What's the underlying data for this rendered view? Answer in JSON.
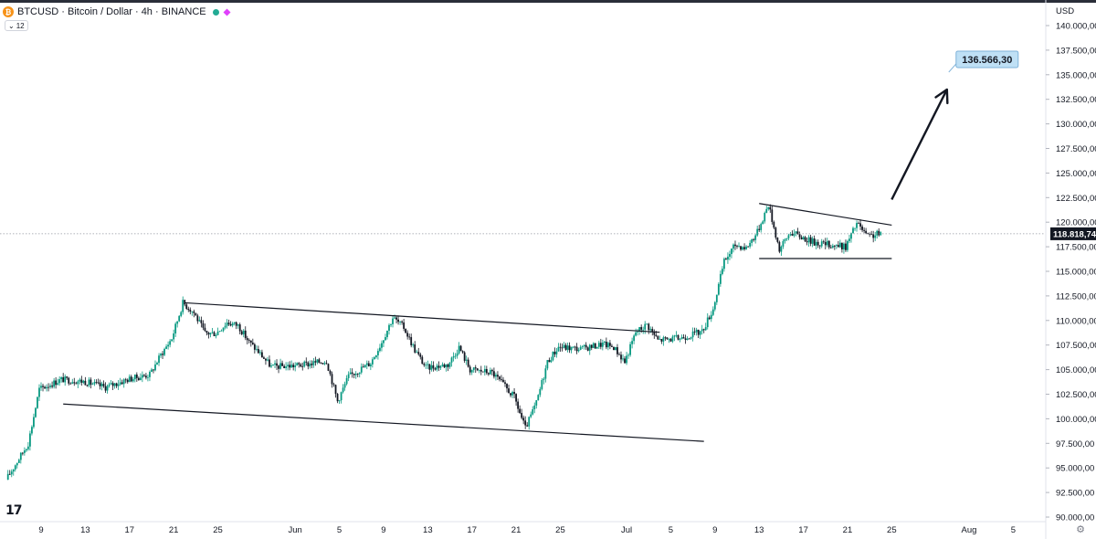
{
  "header": {
    "symbol_line": "BTCUSD · Bitcoin / Dollar · 4h · BINANCE",
    "coin_icon": "bitcoin-icon",
    "indicator_count": "12"
  },
  "price_axis": {
    "currency": "USD",
    "current_price_label": "118.818,74",
    "tick_labels": [
      "140.000,00",
      "137.500,00",
      "135.000,00",
      "132.500,00",
      "130.000,00",
      "127.500,00",
      "125.000,00",
      "122.500,00",
      "120.000,00",
      "117.500,00",
      "115.000,00",
      "112.500,00",
      "110.000,00",
      "107.500,00",
      "105.000,00",
      "102.500,00",
      "100.000,00",
      "97.500,00",
      "95.000,00",
      "92.500,00",
      "90.000,00"
    ]
  },
  "colors": {
    "up": "#089981",
    "down": "#131722",
    "current_price_bg": "#131722",
    "target_bg": "#bfe0f5",
    "target_border": "#7fb2d9"
  },
  "chart_data": {
    "type": "candlestick",
    "symbol": "BTCUSD",
    "interval": "4h",
    "exchange": "BINANCE",
    "ylim": [
      90000,
      140000
    ],
    "current_price": 118818.74,
    "x_tick_labels": [
      "9",
      "13",
      "17",
      "21",
      "25",
      "Jun",
      "5",
      "9",
      "13",
      "17",
      "21",
      "25",
      "Jul",
      "5",
      "9",
      "13",
      "17",
      "21",
      "25",
      "Aug",
      "5"
    ],
    "x_tick_dates": [
      "2025-05-09",
      "2025-05-13",
      "2025-05-17",
      "2025-05-21",
      "2025-05-25",
      "2025-06-01",
      "2025-06-05",
      "2025-06-09",
      "2025-06-13",
      "2025-06-17",
      "2025-06-21",
      "2025-06-25",
      "2025-07-01",
      "2025-07-05",
      "2025-07-09",
      "2025-07-13",
      "2025-07-17",
      "2025-07-21",
      "2025-07-25",
      "2025-08-01",
      "2025-08-05"
    ],
    "date_range": [
      "2025-05-06",
      "2025-08-09"
    ],
    "price_path": [
      [
        "2025-05-06",
        93800
      ],
      [
        "2025-05-08",
        97500
      ],
      [
        "2025-05-09",
        103000
      ],
      [
        "2025-05-11",
        104000
      ],
      [
        "2025-05-13",
        103800
      ],
      [
        "2025-05-15",
        103200
      ],
      [
        "2025-05-17",
        104000
      ],
      [
        "2025-05-19",
        104500
      ],
      [
        "2025-05-20",
        106500
      ],
      [
        "2025-05-21",
        108200
      ],
      [
        "2025-05-22",
        111800
      ],
      [
        "2025-05-23",
        110800
      ],
      [
        "2025-05-24",
        108700
      ],
      [
        "2025-05-25",
        108700
      ],
      [
        "2025-05-26",
        109800
      ],
      [
        "2025-05-27",
        109500
      ],
      [
        "2025-05-28",
        107800
      ],
      [
        "2025-05-29",
        106600
      ],
      [
        "2025-05-30",
        105300
      ],
      [
        "2025-06-01",
        105400
      ],
      [
        "2025-06-02",
        105500
      ],
      [
        "2025-06-04",
        105900
      ],
      [
        "2025-06-05",
        101800
      ],
      [
        "2025-06-06",
        104300
      ],
      [
        "2025-06-08",
        105700
      ],
      [
        "2025-06-09",
        107800
      ],
      [
        "2025-06-10",
        110300
      ],
      [
        "2025-06-11",
        109300
      ],
      [
        "2025-06-12",
        107000
      ],
      [
        "2025-06-13",
        105200
      ],
      [
        "2025-06-15",
        105500
      ],
      [
        "2025-06-16",
        107300
      ],
      [
        "2025-06-17",
        105000
      ],
      [
        "2025-06-19",
        104700
      ],
      [
        "2025-06-21",
        102200
      ],
      [
        "2025-06-22",
        99000
      ],
      [
        "2025-06-23",
        101600
      ],
      [
        "2025-06-24",
        105800
      ],
      [
        "2025-06-25",
        107300
      ],
      [
        "2025-06-27",
        107100
      ],
      [
        "2025-06-29",
        107600
      ],
      [
        "2025-06-30",
        107300
      ],
      [
        "2025-07-01",
        105800
      ],
      [
        "2025-07-02",
        108800
      ],
      [
        "2025-07-03",
        109600
      ],
      [
        "2025-07-04",
        108000
      ],
      [
        "2025-07-06",
        108200
      ],
      [
        "2025-07-08",
        108900
      ],
      [
        "2025-07-09",
        111200
      ],
      [
        "2025-07-10",
        116000
      ],
      [
        "2025-07-11",
        117700
      ],
      [
        "2025-07-12",
        117400
      ],
      [
        "2025-07-13",
        119000
      ],
      [
        "2025-07-14",
        121800
      ],
      [
        "2025-07-15",
        117200
      ],
      [
        "2025-07-16",
        119000
      ],
      [
        "2025-07-18",
        118000
      ],
      [
        "2025-07-19",
        117800
      ],
      [
        "2025-07-21",
        117500
      ],
      [
        "2025-07-22",
        119900
      ],
      [
        "2025-07-23",
        118500
      ],
      [
        "2025-07-24",
        118818.74
      ]
    ],
    "annotations": {
      "channel_upper": [
        [
          "2025-05-22",
          111800
        ],
        [
          "2025-07-04",
          108800
        ]
      ],
      "channel_lower": [
        [
          "2025-05-11",
          101500
        ],
        [
          "2025-07-08",
          97700
        ]
      ],
      "wedge_upper": [
        [
          "2025-07-13",
          121900
        ],
        [
          "2025-07-25",
          119700
        ]
      ],
      "wedge_lower": [
        [
          "2025-07-13",
          116300
        ],
        [
          "2025-07-25",
          116300
        ]
      ],
      "target_arrow": [
        [
          "2025-07-25",
          122300
        ],
        [
          "2025-07-30",
          133500
        ]
      ],
      "target_label": "136.566,30",
      "target_value": 136566.3
    },
    "grid": false
  }
}
